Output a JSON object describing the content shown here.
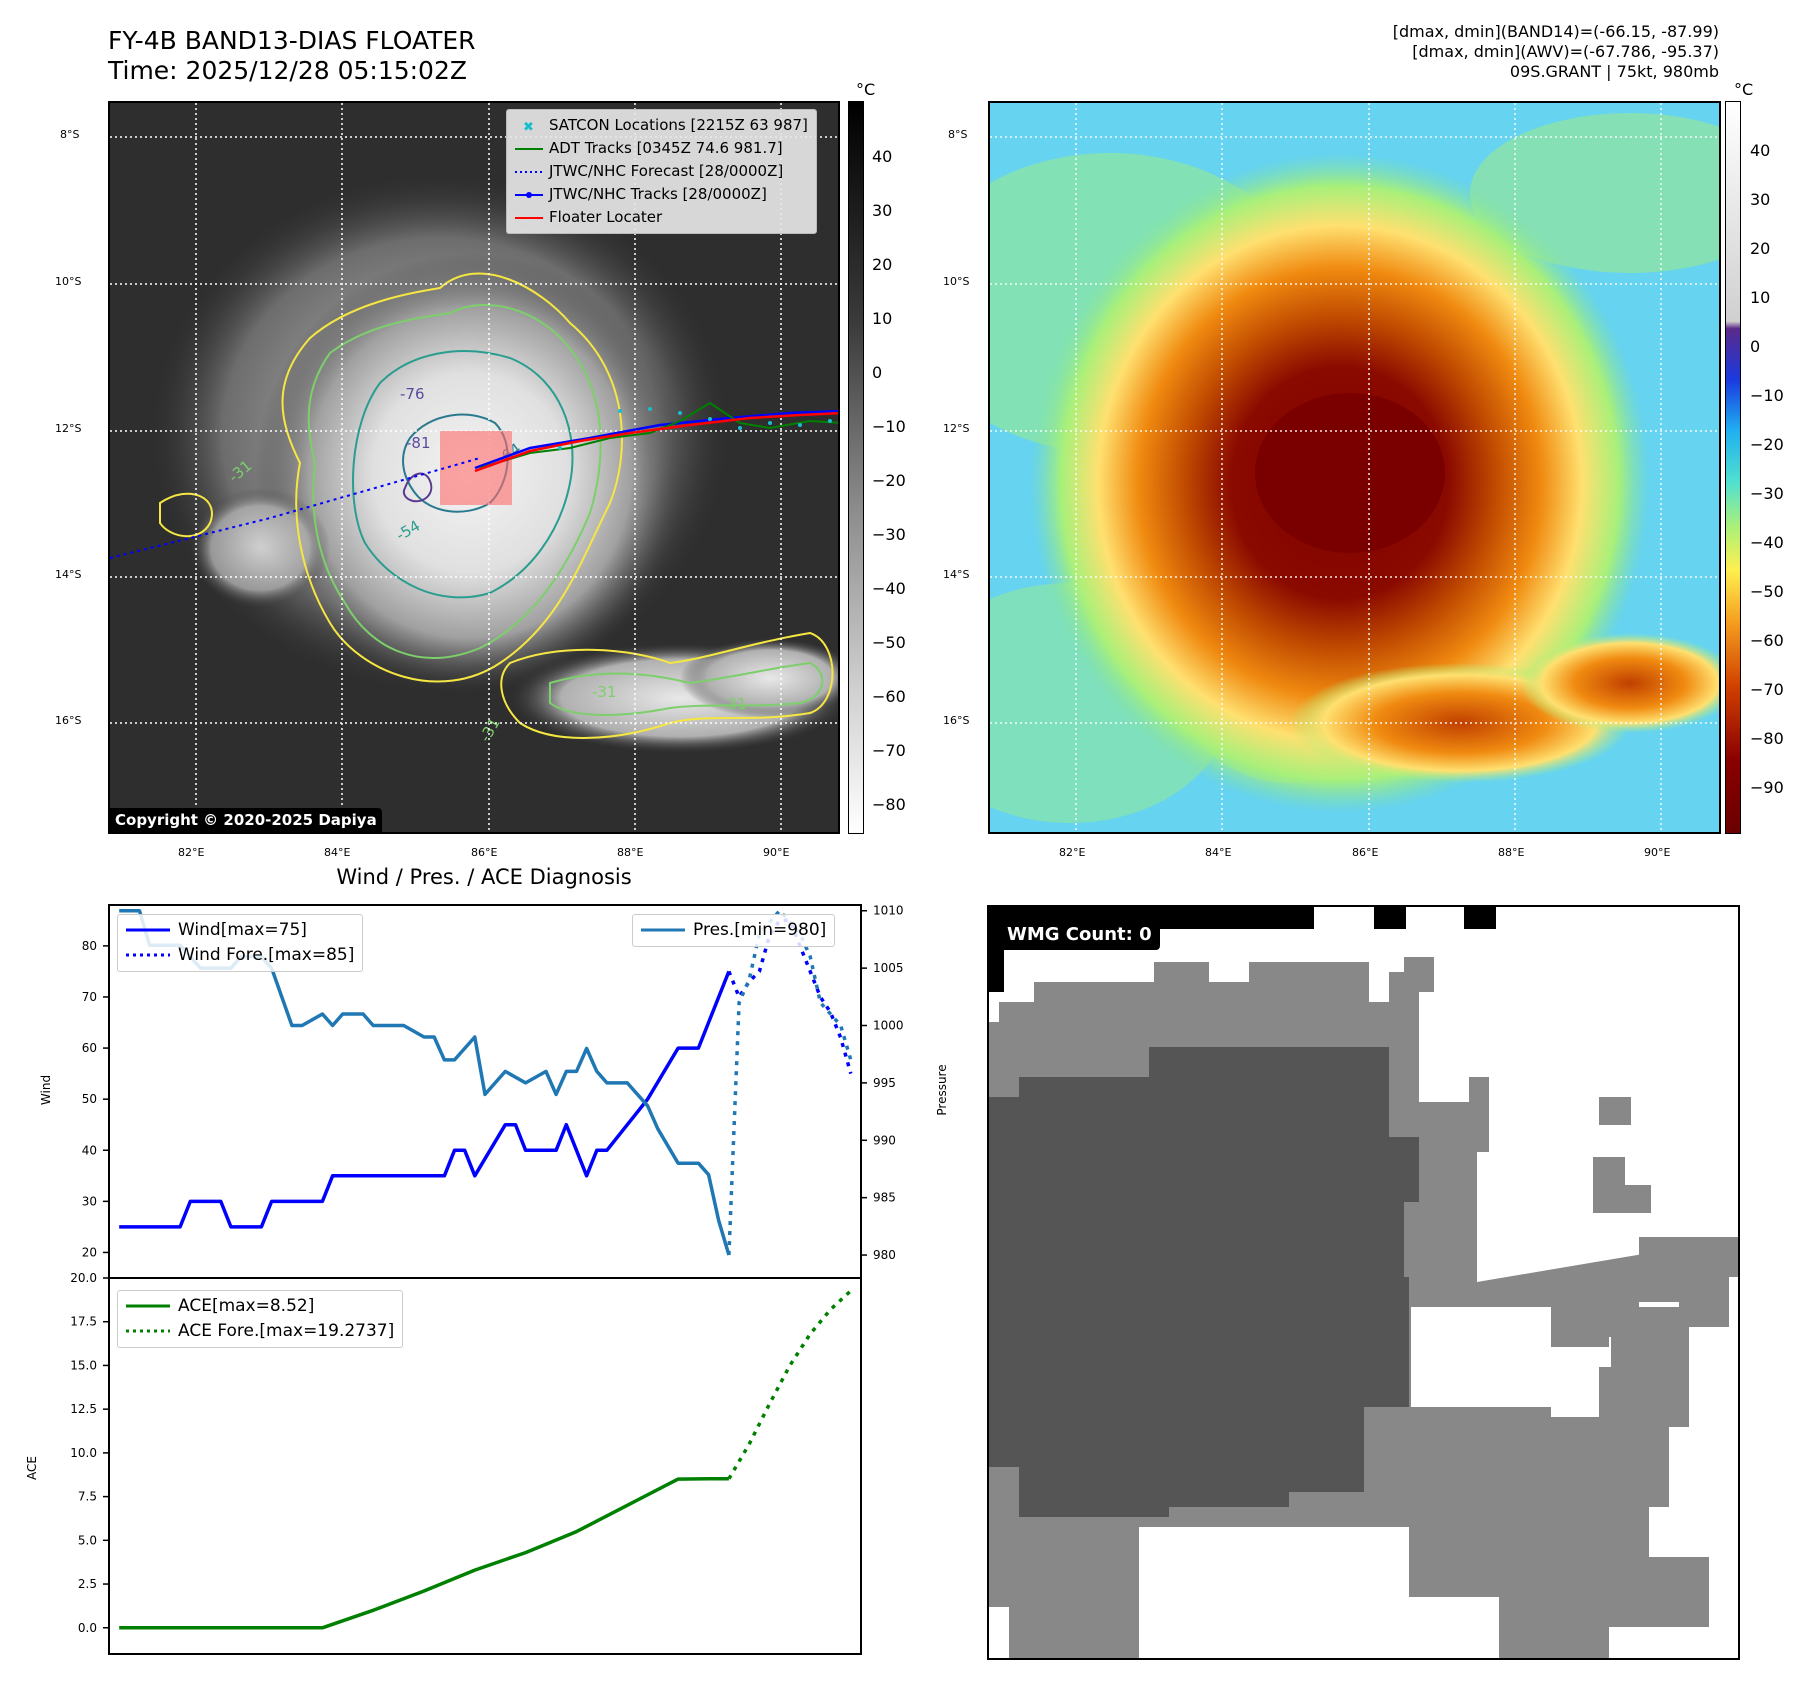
{
  "header": {
    "title_line1": "FY-4B BAND13-DIAS FLOATER",
    "title_line2": "Time: 2025/12/28 05:15:02Z",
    "stat_band14": "[dmax, dmin](BAND14)=(-66.15, -87.99)",
    "stat_awv": "[dmax, dmin](AWV)=(-67.786, -95.37)",
    "storm_info": "09S.GRANT | 75kt, 980mb"
  },
  "map": {
    "lat_labels": [
      "8°S",
      "10°S",
      "12°S",
      "14°S",
      "16°S"
    ],
    "lon_labels": [
      "82°E",
      "84°E",
      "86°E",
      "88°E",
      "90°E"
    ],
    "copyright": "Copyright © 2020-2025 Dapiya",
    "contour_labels": [
      "-76",
      "-81",
      "-64",
      "-54",
      "-31",
      "-31",
      "-31",
      "-31"
    ],
    "legend": [
      {
        "label": "SATCON Locations [2215Z 63 987]",
        "color": "#17becf"
      },
      {
        "label": "ADT Tracks [0345Z 74.6 981.7]",
        "color": "#008000"
      },
      {
        "label": "JTWC/NHC Forecast [28/0000Z]",
        "color": "#0000ff"
      },
      {
        "label": "JTWC/NHC Tracks [28/0000Z]",
        "color": "#0000ff"
      },
      {
        "label": "Floater Locater",
        "color": "#ff0000"
      }
    ]
  },
  "colorbars": {
    "unit": "°C",
    "gray_ticks": [
      "40",
      "30",
      "20",
      "10",
      "0",
      "−10",
      "−20",
      "−30",
      "−40",
      "−50",
      "−60",
      "−70",
      "−80"
    ],
    "color_ticks": [
      "40",
      "30",
      "20",
      "10",
      "0",
      "−10",
      "−20",
      "−30",
      "−40",
      "−50",
      "−60",
      "−70",
      "−80",
      "−90"
    ]
  },
  "diagnosis": {
    "title": "Wind / Pres. / ACE Diagnosis",
    "wind_axis_label": "Wind",
    "pres_axis_label": "Pressure",
    "ace_axis_label": "ACE",
    "wind_legend": "Wind[max=75]",
    "wind_fore_legend": "Wind Fore.[max=85]",
    "pres_legend": "Pres.[min=980]",
    "ace_legend": "ACE[max=8.52]",
    "ace_fore_legend": "ACE Fore.[max=19.2737]"
  },
  "wmg": {
    "label": "WMG Count: 0"
  },
  "chart_data": [
    {
      "type": "line",
      "title": "Wind / Pres. / ACE Diagnosis",
      "ylabel": "Wind",
      "ylim": [
        15,
        88
      ],
      "y2label": "Pressure",
      "y2lim": [
        978,
        1010.5
      ],
      "y_ticks": [
        20,
        30,
        40,
        50,
        60,
        70,
        80
      ],
      "y2_ticks": [
        980,
        985,
        990,
        995,
        1000,
        1005,
        1010
      ],
      "xlim": [
        -1,
        73
      ],
      "series": [
        {
          "name": "Wind[max=75]",
          "axis": "left",
          "color": "#0000ff",
          "style": "solid",
          "x": [
            0,
            6,
            7,
            10,
            11,
            14,
            15,
            20,
            21,
            24,
            25,
            28,
            29,
            32,
            33,
            34,
            35,
            38,
            39,
            40,
            41,
            42,
            43,
            44,
            46,
            47,
            48,
            50,
            52,
            55,
            57,
            60
          ],
          "y": [
            25,
            25,
            30,
            30,
            25,
            25,
            30,
            30,
            35,
            35,
            35,
            35,
            35,
            35,
            40,
            40,
            35,
            45,
            45,
            40,
            40,
            40,
            40,
            45,
            35,
            40,
            40,
            45,
            50,
            60,
            60,
            75
          ]
        },
        {
          "name": "Wind Fore.[max=85]",
          "axis": "left",
          "color": "#0000ff",
          "style": "dotted",
          "x": [
            60,
            61,
            62,
            63,
            64,
            65,
            66,
            67,
            68,
            69,
            70,
            71,
            72
          ],
          "y": [
            75,
            70,
            73,
            75,
            82,
            85,
            85,
            80,
            75,
            70,
            67,
            62,
            55
          ]
        },
        {
          "name": "Pres.[min=980]",
          "axis": "right",
          "color": "#1f77b4",
          "style": "solid",
          "x": [
            0,
            2,
            3,
            6,
            7,
            8,
            11,
            12,
            14,
            15,
            17,
            18,
            20,
            21,
            22,
            24,
            25,
            28,
            30,
            31,
            32,
            33,
            35,
            36,
            38,
            40,
            42,
            43,
            44,
            45,
            46,
            47,
            48,
            50,
            52,
            53,
            55,
            57,
            58,
            59,
            60
          ],
          "y": [
            1010,
            1010,
            1007,
            1007,
            1006,
            1005,
            1005,
            1006,
            1006,
            1005,
            1000,
            1000,
            1001,
            1000,
            1001,
            1001,
            1000,
            1000,
            999,
            999,
            997,
            997,
            999,
            994,
            996,
            995,
            996,
            994,
            996,
            996,
            998,
            996,
            995,
            995,
            993,
            991,
            988,
            988,
            987,
            983,
            980
          ]
        },
        {
          "name": "Pres. Fore.",
          "axis": "right",
          "color": "#1f77b4",
          "style": "dotted",
          "x": [
            60,
            61,
            62,
            63,
            64,
            65,
            66,
            67,
            68,
            69,
            70,
            71,
            72
          ],
          "y": [
            980,
            1002,
            1004,
            1008,
            1009,
            1010,
            1009,
            1008,
            1006,
            1002,
            1001,
            1000,
            997
          ]
        }
      ]
    },
    {
      "type": "line",
      "ylabel": "ACE",
      "ylim": [
        -1.5,
        20
      ],
      "y_ticks": [
        0.0,
        2.5,
        5.0,
        7.5,
        10.0,
        12.5,
        15.0,
        17.5,
        20.0
      ],
      "y_tick_labels": [
        "0.0",
        "2.5",
        "5.0",
        "7.5",
        "10.0",
        "12.5",
        "15.0",
        "17.5",
        "20.0"
      ],
      "xlim": [
        -1,
        73
      ],
      "series": [
        {
          "name": "ACE[max=8.52]",
          "color": "#008000",
          "style": "solid",
          "x": [
            0,
            5,
            10,
            15,
            20,
            25,
            30,
            35,
            40,
            45,
            50,
            55,
            58,
            60
          ],
          "y": [
            0,
            0,
            0,
            0,
            0,
            1.0,
            2.1,
            3.3,
            4.3,
            5.5,
            7.0,
            8.5,
            8.52,
            8.52
          ]
        },
        {
          "name": "ACE Fore.[max=19.2737]",
          "color": "#008000",
          "style": "dotted",
          "x": [
            60,
            62,
            64,
            66,
            68,
            70,
            72
          ],
          "y": [
            8.52,
            10.5,
            12.8,
            15.0,
            16.8,
            18.2,
            19.27
          ]
        }
      ]
    }
  ]
}
